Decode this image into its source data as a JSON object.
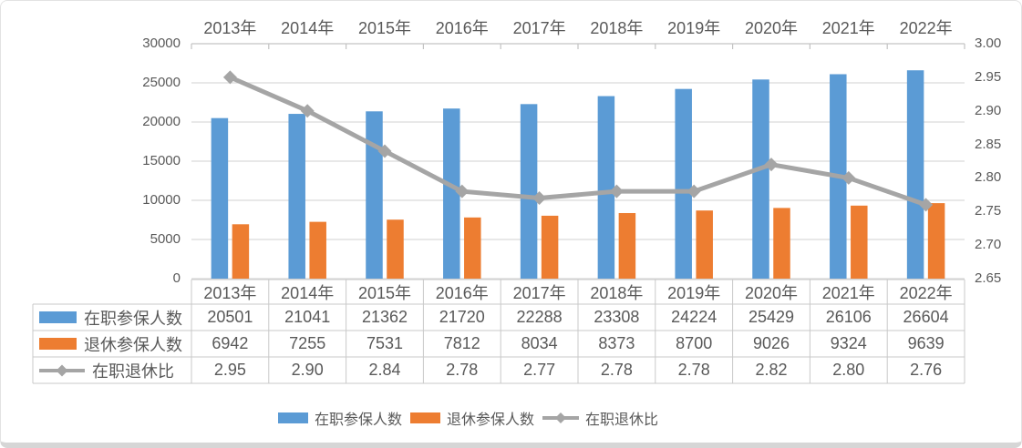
{
  "chart_data": {
    "type": "combo-bar-line",
    "title": "",
    "categories": [
      "2013年",
      "2014年",
      "2015年",
      "2016年",
      "2017年",
      "2018年",
      "2019年",
      "2020年",
      "2021年",
      "2022年"
    ],
    "series": [
      {
        "key": "active-insured",
        "name": "在职参保人数",
        "type": "bar",
        "axis": "left",
        "color": "#5B9BD5",
        "values": [
          20501,
          21041,
          21362,
          21720,
          22288,
          23308,
          24224,
          25429,
          26106,
          26604
        ],
        "display": [
          "20501",
          "21041",
          "21362",
          "21720",
          "22288",
          "23308",
          "24224",
          "25429",
          "26106",
          "26604"
        ]
      },
      {
        "key": "retired-insured",
        "name": "退休参保人数",
        "type": "bar",
        "axis": "left",
        "color": "#ED7D31",
        "values": [
          6942,
          7255,
          7531,
          7812,
          8034,
          8373,
          8700,
          9026,
          9324,
          9639
        ],
        "display": [
          "6942",
          "7255",
          "7531",
          "7812",
          "8034",
          "8373",
          "8700",
          "9026",
          "9324",
          "9639"
        ]
      },
      {
        "key": "active-retired-ratio",
        "name": "在职退休比",
        "type": "line",
        "axis": "right",
        "color": "#A5A5A5",
        "values": [
          2.95,
          2.9,
          2.84,
          2.78,
          2.77,
          2.78,
          2.78,
          2.82,
          2.8,
          2.76
        ],
        "display": [
          "2.95",
          "2.90",
          "2.84",
          "2.78",
          "2.77",
          "2.78",
          "2.78",
          "2.82",
          "2.80",
          "2.76"
        ]
      }
    ],
    "left_axis": {
      "min": 0,
      "max": 30000,
      "step": 5000,
      "ticks": [
        "30000",
        "25000",
        "20000",
        "15000",
        "10000",
        "5000",
        "0"
      ]
    },
    "right_axis": {
      "min": 2.65,
      "max": 3.0,
      "step": 0.05,
      "ticks": [
        "3.00",
        "2.95",
        "2.90",
        "2.85",
        "2.80",
        "2.75",
        "2.70",
        "2.65"
      ]
    },
    "grid": true,
    "legend_position": "bottom",
    "data_table_shown": true
  },
  "colors": {
    "bar_blue": "#5B9BD5",
    "bar_orange": "#ED7D31",
    "line_gray": "#A5A5A5",
    "gridline": "#D9D9D9",
    "axis_line": "#C3C3C3",
    "table_border": "#C9C9C9",
    "text": "#595959"
  }
}
